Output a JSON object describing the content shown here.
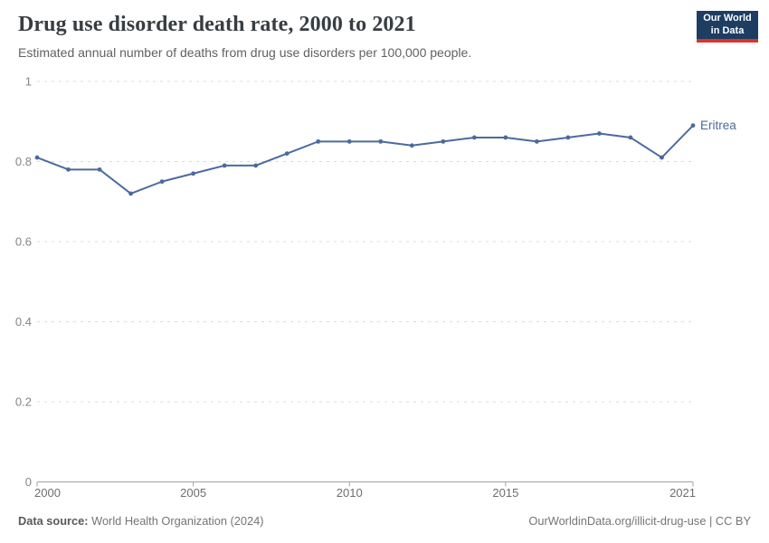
{
  "header": {
    "title": "Drug use disorder death rate, 2000 to 2021",
    "subtitle": "Estimated annual number of deaths from drug use disorders per 100,000 people.",
    "logo": {
      "line1": "Our World",
      "line2": "in Data",
      "bg_color": "#1d3d63",
      "accent_color": "#d9352c"
    }
  },
  "chart_data": {
    "type": "line",
    "title": "Drug use disorder death rate, 2000 to 2021",
    "xlabel": "",
    "ylabel": "",
    "x": [
      2000,
      2001,
      2002,
      2003,
      2004,
      2005,
      2006,
      2007,
      2008,
      2009,
      2010,
      2011,
      2012,
      2013,
      2014,
      2015,
      2016,
      2017,
      2018,
      2019,
      2020,
      2021
    ],
    "series": [
      {
        "name": "Eritrea",
        "color": "#4c6a9c",
        "values": [
          0.81,
          0.78,
          0.78,
          0.72,
          0.75,
          0.77,
          0.79,
          0.79,
          0.82,
          0.85,
          0.85,
          0.85,
          0.84,
          0.85,
          0.86,
          0.86,
          0.85,
          0.86,
          0.87,
          0.86,
          0.81,
          0.89
        ]
      }
    ],
    "xlim": [
      2000,
      2021
    ],
    "ylim": [
      0,
      1
    ],
    "yticks": [
      0,
      0.2,
      0.4,
      0.6,
      0.8,
      1
    ],
    "ytick_labels": [
      "0",
      "0.2",
      "0.4",
      "0.6",
      "0.8",
      "1"
    ],
    "xticks": [
      2000,
      2005,
      2010,
      2015,
      2021
    ],
    "xtick_labels": [
      "2000",
      "2005",
      "2010",
      "2015",
      "2021"
    ],
    "grid": true,
    "grid_style": "dashed",
    "legend_position": "end-of-line",
    "colors": {
      "gridline": "#dcdcdc",
      "axis": "#a3a3a3",
      "y_tick_label": "#858585",
      "x_tick_label": "#6e6e6e"
    }
  },
  "footer": {
    "source_label": "Data source:",
    "source_value": "World Health Organization (2024)",
    "attribution": "OurWorldinData.org/illicit-drug-use | CC BY"
  }
}
